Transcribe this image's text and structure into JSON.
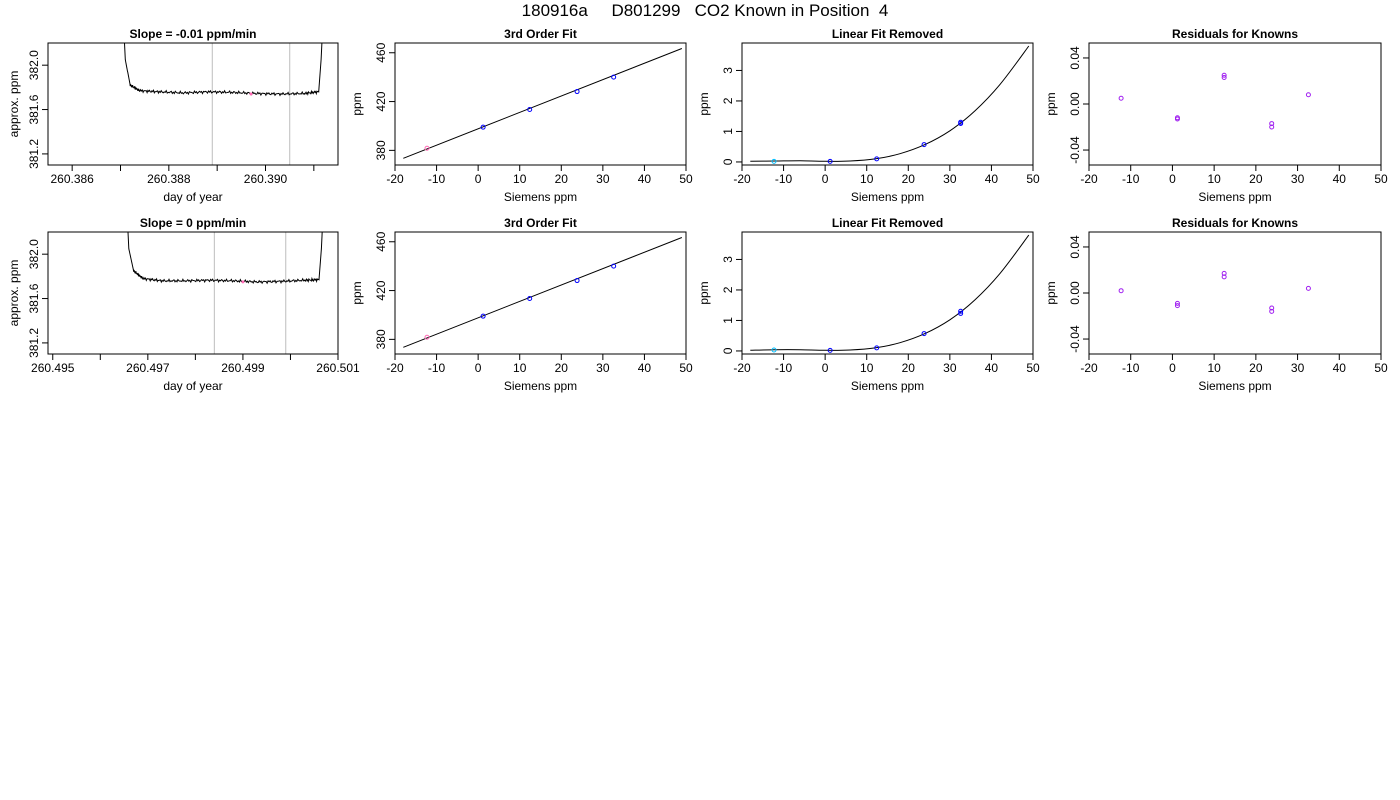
{
  "page_title": "180916a     D801299   CO2 Known in Position  4",
  "colors": {
    "axis": "#000000",
    "trace": "#000000",
    "marker_line": "#c8c8c8",
    "point_blue": "#0000ff",
    "point_purple": "#a020f0",
    "point_cyan": "#00bfff",
    "point_pink": "#ff69b4"
  },
  "chart_data": [
    {
      "type": "line",
      "row": 1,
      "title": "Slope =  -0.01  ppm/min",
      "xlabel": "day of year",
      "ylabel": "approx. ppm",
      "xlim": [
        260.3855,
        260.3915
      ],
      "ylim": [
        381.1,
        382.2
      ],
      "x_ticks": [
        260.386,
        260.387,
        260.388,
        260.389,
        260.39,
        260.391
      ],
      "x_tick_labels": [
        "260.386",
        "",
        "260.388",
        "",
        "260.390",
        ""
      ],
      "y_ticks": [
        381.2,
        381.6,
        382.0
      ],
      "y_tick_labels": [
        "381.2",
        "381.6",
        "382.0"
      ],
      "vlines": [
        260.3889,
        260.3905
      ],
      "x": [
        260.38705,
        260.3871,
        260.3872,
        260.3874,
        260.3878,
        260.3883,
        260.3888,
        260.3893,
        260.3898,
        260.3903,
        260.3908,
        260.3911,
        260.39115,
        260.3912
      ],
      "y": [
        382.5,
        382.05,
        381.82,
        381.77,
        381.76,
        381.75,
        381.76,
        381.755,
        381.745,
        381.74,
        381.745,
        381.76,
        382.05,
        382.5
      ],
      "marker": {
        "x": 260.3897,
        "y": 381.74
      }
    },
    {
      "type": "scatter",
      "row": 1,
      "title": "3rd Order Fit",
      "xlabel": "Siemens ppm",
      "ylabel": "ppm",
      "xlim": [
        -20,
        50
      ],
      "ylim": [
        368,
        468
      ],
      "x_ticks": [
        -20,
        -10,
        0,
        10,
        20,
        30,
        40,
        50
      ],
      "y_ticks": [
        380,
        420,
        460
      ],
      "curve": {
        "x": [
          -18,
          49
        ],
        "y": [
          373.5,
          463.5
        ]
      },
      "points": {
        "x": [
          -12.3,
          1.2,
          12.4,
          23.8,
          32.6
        ],
        "y": [
          381.7,
          399.0,
          413.5,
          428.2,
          440.0
        ]
      }
    },
    {
      "type": "scatter",
      "row": 1,
      "title": "Linear Fit Removed",
      "xlabel": "Siemens ppm",
      "ylabel": "ppm",
      "xlim": [
        -20,
        50
      ],
      "ylim": [
        -0.1,
        3.9
      ],
      "x_ticks": [
        -20,
        -10,
        0,
        10,
        20,
        30,
        40,
        50
      ],
      "y_ticks": [
        0,
        1,
        2,
        3
      ],
      "curve": {
        "x": [
          -18,
          -12,
          -6,
          0,
          6,
          12,
          18,
          24,
          30,
          36,
          42,
          49
        ],
        "y": [
          0.02,
          0.03,
          0.04,
          0.02,
          0.03,
          0.1,
          0.27,
          0.57,
          1.02,
          1.67,
          2.53,
          3.8
        ]
      },
      "points": {
        "x": [
          -12.3,
          1.2,
          12.4,
          23.8,
          32.6,
          32.6
        ],
        "y": [
          0.02,
          0.02,
          0.1,
          0.57,
          1.26,
          1.3
        ]
      }
    },
    {
      "type": "scatter",
      "row": 1,
      "title": "Residuals for Knowns",
      "xlabel": "Siemens ppm",
      "ylabel": "ppm",
      "xlim": [
        -20,
        50
      ],
      "ylim": [
        -0.053,
        0.053
      ],
      "x_ticks": [
        -20,
        -10,
        0,
        10,
        20,
        30,
        40,
        50
      ],
      "y_ticks": [
        -0.04,
        0.0,
        0.04
      ],
      "y_tick_labels": [
        "-0.04",
        "0.00",
        "0.04"
      ],
      "points": {
        "x": [
          -12.3,
          1.2,
          1.2,
          12.4,
          12.4,
          23.8,
          23.8,
          32.6
        ],
        "y": [
          0.005,
          -0.012,
          -0.013,
          0.025,
          0.023,
          -0.017,
          -0.02,
          0.008
        ]
      }
    },
    {
      "type": "line",
      "row": 2,
      "title": "Slope =  0  ppm/min",
      "xlabel": "day of year",
      "ylabel": "approx. ppm",
      "xlim": [
        260.4949,
        260.501
      ],
      "ylim": [
        381.1,
        382.2
      ],
      "x_ticks": [
        260.495,
        260.496,
        260.497,
        260.498,
        260.499,
        260.5,
        260.501
      ],
      "x_tick_labels": [
        "260.495",
        "",
        "260.497",
        "",
        "260.499",
        "",
        "260.501"
      ],
      "y_ticks": [
        381.2,
        381.6,
        382.0
      ],
      "y_tick_labels": [
        "381.2",
        "381.6",
        "382.0"
      ],
      "vlines": [
        260.4984,
        260.4999
      ],
      "x": [
        260.49655,
        260.4966,
        260.4967,
        260.4969,
        260.4973,
        260.4978,
        260.4983,
        260.4988,
        260.4993,
        260.4998,
        260.5003,
        260.5006,
        260.50065,
        260.5007
      ],
      "y": [
        382.5,
        382.05,
        381.85,
        381.78,
        381.76,
        381.76,
        381.765,
        381.76,
        381.75,
        381.755,
        381.765,
        381.77,
        382.05,
        382.5
      ],
      "marker": {
        "x": 260.499,
        "y": 381.75
      }
    },
    {
      "type": "scatter",
      "row": 2,
      "title": "3rd Order Fit",
      "xlabel": "Siemens ppm",
      "ylabel": "ppm",
      "xlim": [
        -20,
        50
      ],
      "ylim": [
        368,
        468
      ],
      "x_ticks": [
        -20,
        -10,
        0,
        10,
        20,
        30,
        40,
        50
      ],
      "y_ticks": [
        380,
        420,
        460
      ],
      "curve": {
        "x": [
          -18,
          49
        ],
        "y": [
          373.5,
          463.5
        ]
      },
      "points": {
        "x": [
          -12.3,
          1.2,
          12.4,
          23.8,
          32.6
        ],
        "y": [
          381.7,
          399.0,
          413.5,
          428.2,
          440.0
        ]
      }
    },
    {
      "type": "scatter",
      "row": 2,
      "title": "Linear Fit Removed",
      "xlabel": "Siemens ppm",
      "ylabel": "ppm",
      "xlim": [
        -20,
        50
      ],
      "ylim": [
        -0.1,
        3.9
      ],
      "x_ticks": [
        -20,
        -10,
        0,
        10,
        20,
        30,
        40,
        50
      ],
      "y_ticks": [
        0,
        1,
        2,
        3
      ],
      "curve": {
        "x": [
          -18,
          -12,
          -6,
          0,
          6,
          12,
          18,
          24,
          30,
          36,
          42,
          49
        ],
        "y": [
          0.02,
          0.04,
          0.04,
          0.02,
          0.03,
          0.1,
          0.27,
          0.57,
          1.02,
          1.67,
          2.53,
          3.8
        ]
      },
      "points": {
        "x": [
          -12.3,
          1.2,
          12.4,
          23.8,
          32.6,
          32.6
        ],
        "y": [
          0.03,
          0.02,
          0.1,
          0.57,
          1.23,
          1.3
        ]
      }
    },
    {
      "type": "scatter",
      "row": 2,
      "title": "Residuals for Knowns",
      "xlabel": "Siemens ppm",
      "ylabel": "ppm",
      "xlim": [
        -20,
        50
      ],
      "ylim": [
        -0.053,
        0.053
      ],
      "x_ticks": [
        -20,
        -10,
        0,
        10,
        20,
        30,
        40,
        50
      ],
      "y_ticks": [
        -0.04,
        0.0,
        0.04
      ],
      "y_tick_labels": [
        "-0.04",
        "0.00",
        "0.04"
      ],
      "points": {
        "x": [
          -12.3,
          1.2,
          1.2,
          12.4,
          12.4,
          23.8,
          23.8,
          32.6
        ],
        "y": [
          0.002,
          -0.009,
          -0.011,
          0.017,
          0.014,
          -0.013,
          -0.016,
          0.004
        ]
      }
    }
  ]
}
